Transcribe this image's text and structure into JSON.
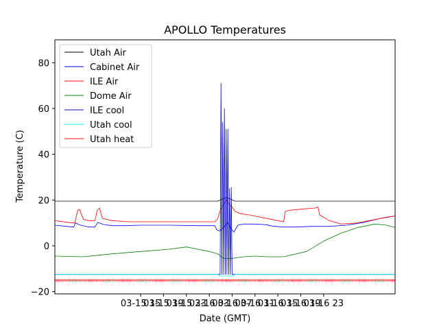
{
  "chart_data": {
    "type": "line",
    "title": "APOLLO Temperatures",
    "xlabel": "Date (GMT)",
    "ylabel": "Temperature (C)",
    "xlim": [
      0,
      59.5
    ],
    "ylim": [
      -21,
      90
    ],
    "x_unit": "hours since 2019-03-15 00:00 GMT",
    "x_ticks": [
      {
        "x": 15,
        "label": "03-15 15"
      },
      {
        "x": 19,
        "label": "03-15 19"
      },
      {
        "x": 23,
        "label": "03-15 23"
      },
      {
        "x": 27,
        "label": "03-16 03"
      },
      {
        "x": 31,
        "label": "03-16 07"
      },
      {
        "x": 35,
        "label": "03-16 11"
      },
      {
        "x": 39,
        "label": "03-16 15"
      },
      {
        "x": 43,
        "label": "03-16 19"
      },
      {
        "x": 47,
        "label": "03-16 23"
      }
    ],
    "y_ticks": [
      {
        "y": -20,
        "label": "−20"
      },
      {
        "y": 0,
        "label": "0"
      },
      {
        "y": 20,
        "label": "20"
      },
      {
        "y": 40,
        "label": "40"
      },
      {
        "y": 60,
        "label": "60"
      },
      {
        "y": 80,
        "label": "80"
      }
    ],
    "legend_position": "top-left",
    "series": [
      {
        "name": "Utah Air",
        "color": "#000000",
        "x": [
          0,
          28.5,
          29.2,
          30,
          30.8,
          31.5,
          59.5
        ],
        "y": [
          19.5,
          19.5,
          20.3,
          21,
          20.3,
          19.5,
          19.5
        ]
      },
      {
        "name": "Cabinet Air",
        "color": "#0000ff",
        "x": [
          0,
          1.5,
          3.3,
          3.6,
          4.5,
          6,
          7,
          7.5,
          8.5,
          10,
          12,
          15,
          20,
          25,
          28,
          28.3,
          28.8,
          29.5,
          30.2,
          30.8,
          31.3,
          32,
          33,
          35,
          37,
          38,
          40,
          42,
          45,
          48,
          51,
          54,
          57,
          59.5
        ],
        "y": [
          9,
          8.6,
          8.2,
          10,
          9,
          8.2,
          8.2,
          10.2,
          9.3,
          8.8,
          8.8,
          9,
          9,
          8.8,
          8.8,
          7,
          6.5,
          8,
          10.2,
          7.5,
          6,
          9,
          9.5,
          9.5,
          9.2,
          8.6,
          8.2,
          8.2,
          8.5,
          8.5,
          9,
          10.2,
          12,
          13
        ]
      },
      {
        "name": "ILE Air",
        "color": "#ff0000",
        "x": [
          0,
          3,
          3.5,
          4,
          4.3,
          5,
          6,
          7,
          7.4,
          7.8,
          8.3,
          10,
          13,
          16,
          20,
          25,
          28,
          28.5,
          29,
          29.5,
          30,
          30.5,
          31,
          31.5,
          32.5,
          34,
          38,
          40,
          40.3,
          41,
          43,
          45.5,
          46,
          46.3,
          48,
          50,
          53,
          56,
          58,
          59.5
        ],
        "y": [
          11,
          10,
          10,
          15.5,
          16,
          11.5,
          11,
          11,
          15.5,
          16.5,
          12,
          11,
          10.5,
          10.5,
          10.5,
          10.5,
          10.5,
          12,
          16,
          18,
          20,
          18,
          17,
          15,
          14,
          13.5,
          11.5,
          10.5,
          15,
          15.5,
          16,
          16.5,
          17,
          13.5,
          11,
          9.5,
          10,
          11.5,
          12.5,
          13
        ]
      },
      {
        "name": "Dome Air",
        "color": "#008000",
        "x": [
          0,
          5,
          10,
          15,
          20,
          23,
          25,
          27,
          28.5,
          29.5,
          31,
          33,
          35,
          37,
          40,
          44,
          47,
          50,
          53,
          56,
          58,
          59.5
        ],
        "y": [
          -4.5,
          -4.8,
          -3.5,
          -2.5,
          -1.5,
          -0.5,
          -1.5,
          -2.5,
          -3.5,
          -5.5,
          -5.5,
          -4.8,
          -4.5,
          -4.8,
          -4.8,
          -2.5,
          2,
          5.5,
          8,
          9.5,
          9,
          8
        ]
      },
      {
        "name": "ILE cool",
        "color": "#0000cc",
        "x": [
          0,
          28.9,
          29.05,
          29.2,
          29.35,
          29.5,
          29.65,
          29.8,
          29.95,
          30.1,
          30.25,
          30.4,
          30.55,
          30.7,
          30.85,
          31,
          31.15,
          59.5
        ],
        "y": [
          -12.5,
          -12.5,
          71,
          -12.5,
          54,
          -12.5,
          60,
          -12.5,
          51,
          -12.5,
          51,
          -12.5,
          25,
          -12.5,
          25.5,
          -12.5,
          -12.5,
          -12.5
        ]
      },
      {
        "name": "Utah cool",
        "color": "#00eeee",
        "x": [
          0,
          28.6,
          28.8,
          31.2,
          31.4,
          59.5
        ],
        "y": [
          -12.5,
          -12.5,
          -13.2,
          -13.2,
          -12.5,
          -12.5
        ]
      },
      {
        "name": "Utah heat",
        "color": "#ff0000",
        "x": [
          0,
          59.5
        ],
        "y": [
          -15,
          -15
        ]
      }
    ]
  }
}
